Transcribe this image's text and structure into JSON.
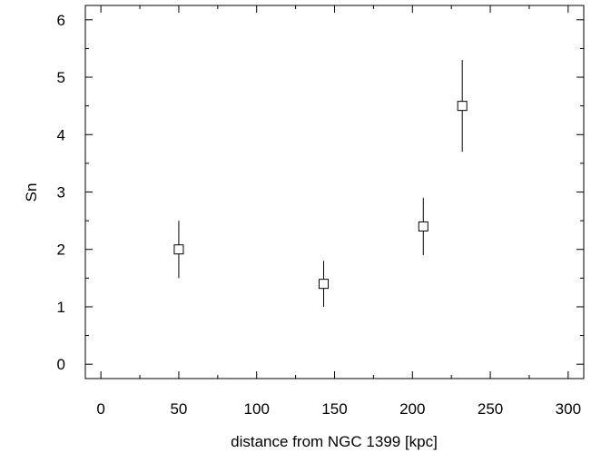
{
  "chart_data": {
    "type": "scatter",
    "title": "",
    "xlabel": "distance from NGC 1399 [kpc]",
    "ylabel": "Sn",
    "xlim": [
      -10,
      310
    ],
    "ylim": [
      -0.25,
      6.25
    ],
    "x_ticks": [
      0,
      50,
      100,
      150,
      200,
      250,
      300
    ],
    "y_ticks": [
      0,
      1,
      2,
      3,
      4,
      5,
      6
    ],
    "x_minor_step": 25,
    "y_minor_step": 0.5,
    "grid": false,
    "marker": "open-square",
    "color": "#000000",
    "points": [
      {
        "x": 50,
        "y": 2.0,
        "yerr_low": 1.5,
        "yerr_high": 2.5
      },
      {
        "x": 143,
        "y": 1.4,
        "yerr_low": 1.0,
        "yerr_high": 1.8
      },
      {
        "x": 207,
        "y": 2.4,
        "yerr_low": 1.9,
        "yerr_high": 2.9
      },
      {
        "x": 232,
        "y": 4.5,
        "yerr_low": 3.7,
        "yerr_high": 5.3
      }
    ]
  }
}
